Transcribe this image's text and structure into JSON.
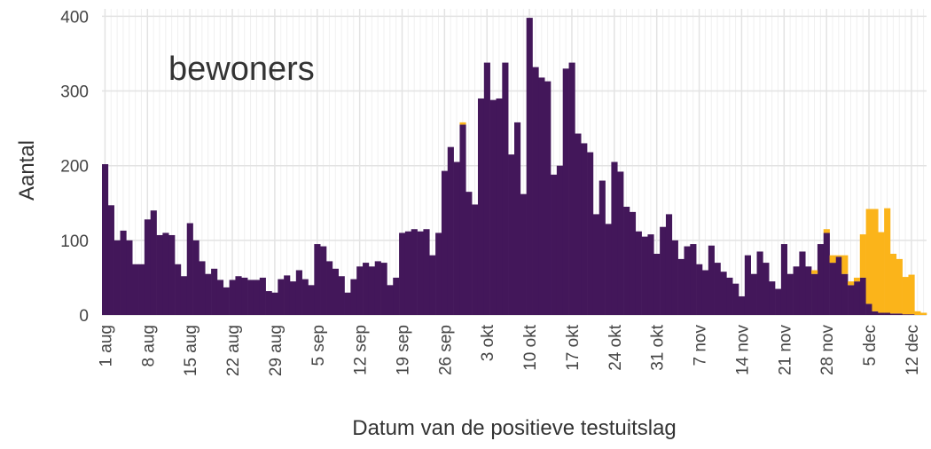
{
  "chart_data": {
    "type": "stacked_bar",
    "annotation": "bewoners",
    "y_label": "Aantal",
    "x_label": "Datum van de positieve testuitslag",
    "categories": [
      "1 aug",
      null,
      null,
      null,
      null,
      null,
      null,
      "8 aug",
      null,
      null,
      null,
      null,
      null,
      null,
      "15 aug",
      null,
      null,
      null,
      null,
      null,
      null,
      "22 aug",
      null,
      null,
      null,
      null,
      null,
      null,
      "29 aug",
      null,
      null,
      null,
      null,
      null,
      null,
      "5 sep",
      null,
      null,
      null,
      null,
      null,
      null,
      "12 sep",
      null,
      null,
      null,
      null,
      null,
      null,
      "19 sep",
      null,
      null,
      null,
      null,
      null,
      null,
      "26 sep",
      null,
      null,
      null,
      null,
      null,
      null,
      "3 okt",
      null,
      null,
      null,
      null,
      null,
      null,
      "10 okt",
      null,
      null,
      null,
      null,
      null,
      null,
      "17 okt",
      null,
      null,
      null,
      null,
      null,
      null,
      "24 okt",
      null,
      null,
      null,
      null,
      null,
      null,
      "31 okt",
      null,
      null,
      null,
      null,
      null,
      null,
      "7 nov",
      null,
      null,
      null,
      null,
      null,
      null,
      "14 nov",
      null,
      null,
      null,
      null,
      null,
      null,
      "21 nov",
      null,
      null,
      null,
      null,
      null,
      null,
      "28 nov",
      null,
      null,
      null,
      null,
      null,
      null,
      "5 dec",
      null,
      null,
      null,
      null,
      null,
      null,
      "12 dec",
      null,
      null
    ],
    "series": [
      {
        "color": "#43175a",
        "values": [
          202,
          147,
          100,
          113,
          100,
          68,
          68,
          128,
          140,
          107,
          110,
          107,
          68,
          52,
          123,
          100,
          72,
          55,
          62,
          47,
          37,
          47,
          52,
          50,
          47,
          47,
          50,
          32,
          30,
          48,
          53,
          45,
          60,
          48,
          40,
          95,
          92,
          72,
          62,
          52,
          30,
          48,
          65,
          70,
          65,
          72,
          70,
          40,
          50,
          110,
          112,
          115,
          112,
          115,
          80,
          110,
          193,
          225,
          205,
          255,
          165,
          148,
          290,
          338,
          288,
          290,
          338,
          215,
          258,
          162,
          398,
          332,
          318,
          313,
          188,
          200,
          330,
          338,
          243,
          230,
          218,
          135,
          180,
          122,
          205,
          192,
          145,
          138,
          112,
          105,
          108,
          82,
          118,
          135,
          100,
          75,
          92,
          95,
          68,
          60,
          93,
          70,
          58,
          50,
          42,
          25,
          80,
          55,
          85,
          70,
          45,
          35,
          95,
          55,
          65,
          85,
          65,
          55,
          95,
          110,
          70,
          78,
          55,
          40,
          45,
          50,
          15,
          5,
          3,
          3,
          2,
          2,
          1,
          1,
          0,
          0
        ]
      },
      {
        "color": "#fbb41a",
        "values": [
          0,
          0,
          0,
          0,
          0,
          0,
          0,
          0,
          0,
          0,
          0,
          0,
          0,
          0,
          0,
          0,
          0,
          0,
          0,
          0,
          0,
          0,
          0,
          0,
          0,
          0,
          0,
          0,
          0,
          0,
          0,
          0,
          0,
          0,
          0,
          0,
          0,
          0,
          0,
          0,
          0,
          0,
          0,
          0,
          0,
          0,
          0,
          0,
          0,
          0,
          0,
          0,
          0,
          0,
          0,
          0,
          0,
          0,
          0,
          3,
          0,
          0,
          0,
          0,
          0,
          0,
          0,
          0,
          0,
          0,
          0,
          0,
          0,
          0,
          0,
          0,
          0,
          0,
          0,
          0,
          0,
          0,
          0,
          0,
          0,
          0,
          0,
          0,
          0,
          0,
          0,
          0,
          0,
          0,
          0,
          0,
          0,
          0,
          0,
          0,
          0,
          0,
          0,
          0,
          0,
          0,
          0,
          0,
          0,
          0,
          0,
          0,
          0,
          0,
          0,
          0,
          0,
          5,
          0,
          5,
          10,
          2,
          25,
          5,
          5,
          58,
          127,
          137,
          108,
          140,
          80,
          73,
          50,
          53,
          5,
          3
        ]
      }
    ],
    "ylim": [
      0,
      410
    ],
    "yticks": [
      0,
      100,
      200,
      300,
      400
    ],
    "grid": true
  }
}
